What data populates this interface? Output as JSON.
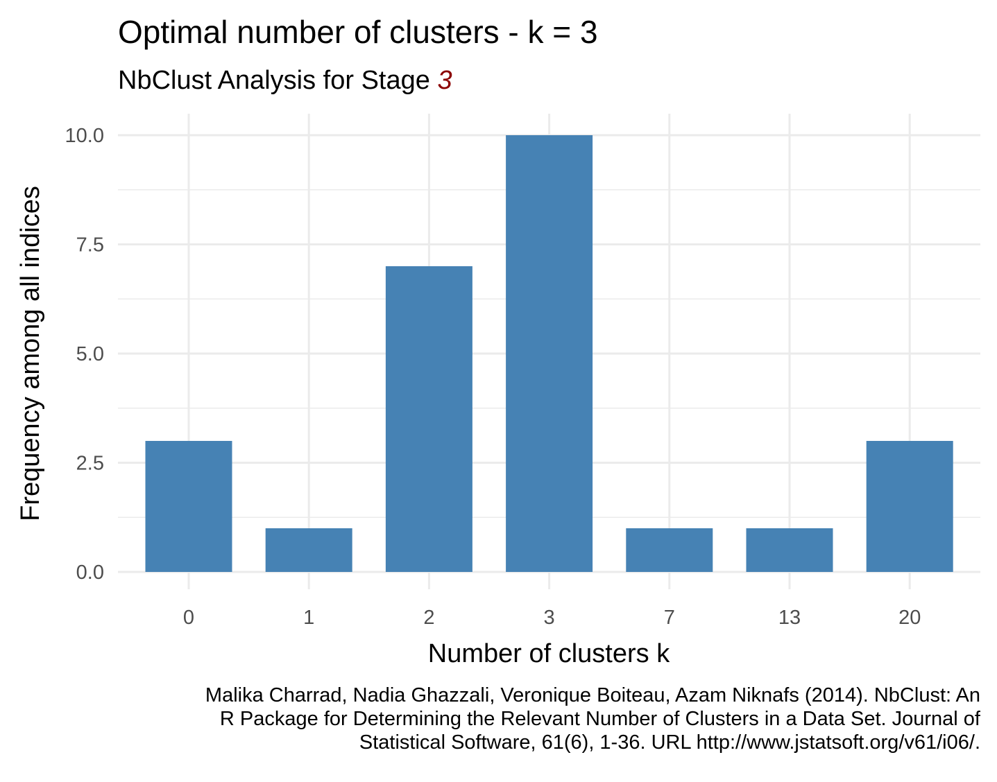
{
  "header": {
    "title": "Optimal number of clusters - k = 3",
    "subtitle_prefix": "NbClust Analysis for Stage ",
    "subtitle_stage": "3"
  },
  "caption": {
    "lines": [
      "Malika Charrad, Nadia Ghazzali, Veronique Boiteau, Azam Niknafs (2014). NbClust: An",
      "R Package for Determining the Relevant Number of Clusters in a Data Set. Journal of",
      "Statistical Software, 61(6), 1-36. URL http://www.jstatsoft.org/v61/i06/."
    ]
  },
  "colors": {
    "bar": "#4682b4",
    "grid": "#ebebeb",
    "subtitle_accent": "#8b0000",
    "tick_text": "#4d4d4d"
  },
  "chart_data": {
    "type": "bar",
    "title": "Optimal number of clusters - k = 3",
    "subtitle": "NbClust Analysis for Stage 3",
    "xlabel": "Number of clusters k",
    "ylabel": "Frequency among all indices",
    "categories": [
      "0",
      "1",
      "2",
      "3",
      "7",
      "13",
      "20"
    ],
    "values": [
      3,
      1,
      7,
      10,
      1,
      1,
      3
    ],
    "ylim": [
      0,
      10
    ],
    "yticks": [
      "0.0",
      "2.5",
      "5.0",
      "7.5",
      "10.0"
    ],
    "ytick_values": [
      0,
      2.5,
      5,
      7.5,
      10
    ],
    "grid": true,
    "legend": "none"
  }
}
